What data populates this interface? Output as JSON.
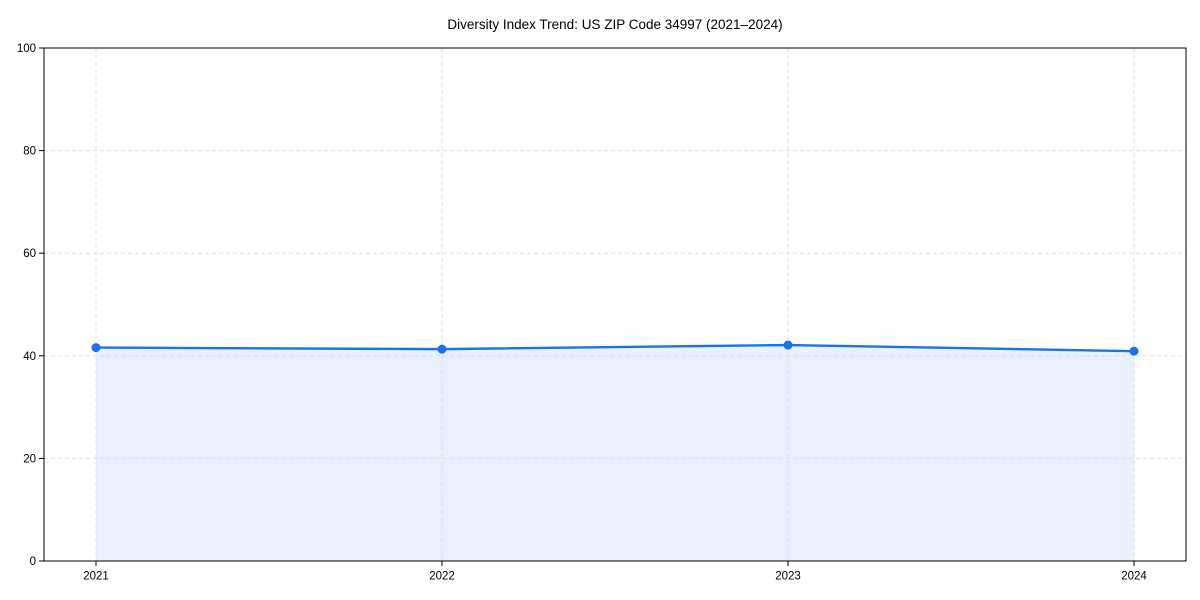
{
  "figure": {
    "background": "#ffffff"
  },
  "chart_data": {
    "type": "area",
    "title": "Diversity Index Trend: US ZIP Code 34997 (2021–2024)",
    "x": [
      2021,
      2022,
      2023,
      2024
    ],
    "xtick_labels": [
      "2021",
      "2022",
      "2023",
      "2024"
    ],
    "series": [
      {
        "name": "Diversity Index",
        "values": [
          41.6,
          41.3,
          42.1,
          40.9
        ]
      }
    ],
    "xlabel": "",
    "ylabel": "",
    "ylim": [
      0,
      100
    ],
    "yticks": [
      0,
      20,
      40,
      60,
      80,
      100
    ],
    "grid": true,
    "grid_style": "dashed",
    "legend": "none",
    "marker": "circle",
    "colors": {
      "line": "#1a73e8",
      "marker": "#1a73e8",
      "fill": "rgba(26,115,232,0.10)",
      "grid": "#dfdfdf",
      "axis": "#000000",
      "text": "#000000"
    }
  }
}
